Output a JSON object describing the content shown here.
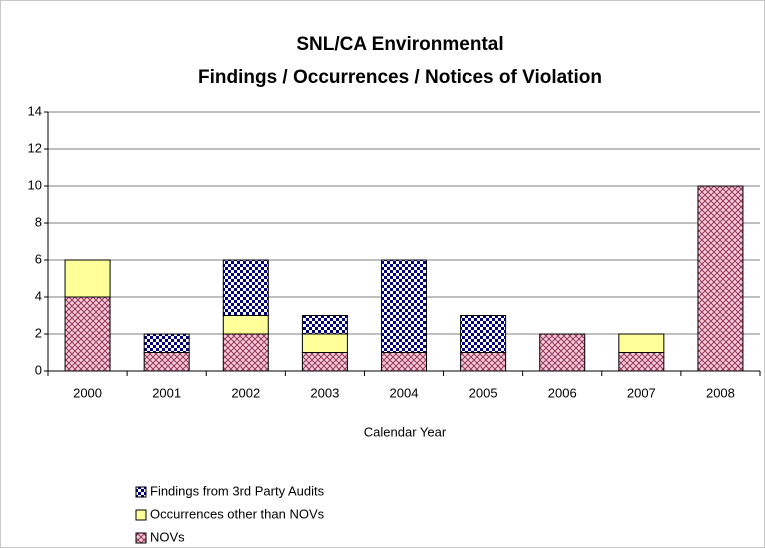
{
  "chart_data": {
    "type": "stacked_bar",
    "title": "SNL/CA Environmental",
    "subtitle": "Findings / Occurrences / Notices of Violation",
    "x_label": "Calendar Year",
    "categories": [
      "2000",
      "2001",
      "2002",
      "2003",
      "2004",
      "2005",
      "2006",
      "2007",
      "2008"
    ],
    "series": [
      {
        "name": "NOVs",
        "color": "#993366",
        "pattern": "crosshatch",
        "values": [
          4,
          1,
          2,
          1,
          1,
          1,
          2,
          1,
          10
        ]
      },
      {
        "name": "Occurrences other than NOVs",
        "color": "#ffff99",
        "pattern": "solid",
        "values": [
          2,
          0,
          1,
          1,
          0,
          0,
          0,
          1,
          0
        ]
      },
      {
        "name": "Findings from 3rd Party Audits",
        "color": "#000080",
        "pattern": "dots",
        "values": [
          0,
          1,
          3,
          1,
          5,
          2,
          0,
          0,
          0
        ]
      }
    ],
    "ylim": [
      0,
      14
    ],
    "yticks": [
      0,
      2,
      4,
      6,
      8,
      10,
      12,
      14
    ],
    "grid": true,
    "legend": "bottom-left"
  }
}
